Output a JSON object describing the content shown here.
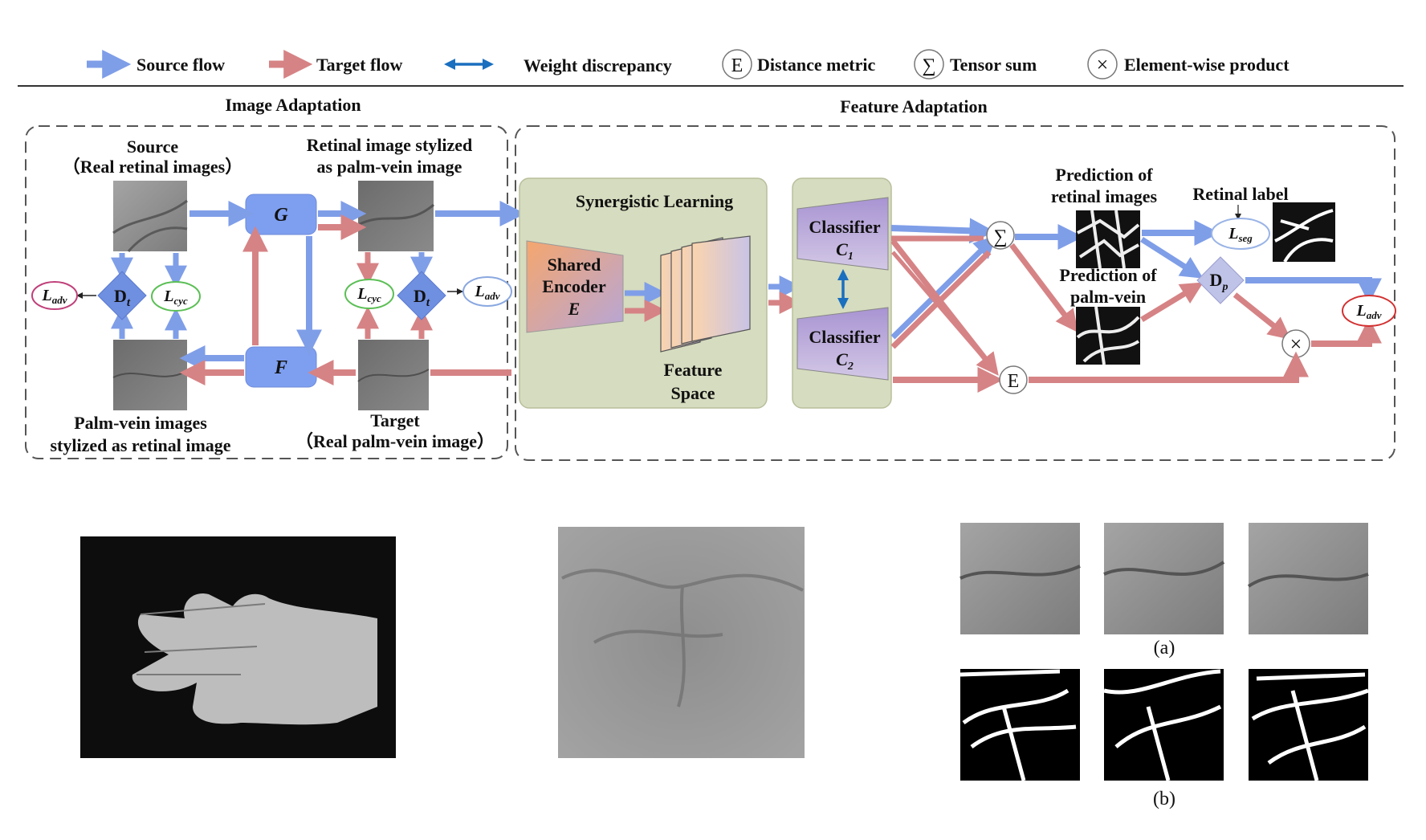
{
  "legend": {
    "source_flow": "Source flow",
    "target_flow": "Target flow",
    "weight_discrepancy": "Weight discrepancy",
    "distance_metric_symbol": "E",
    "distance_metric": "Distance metric",
    "tensor_sum_symbol": "∑",
    "tensor_sum": "Tensor sum",
    "element_product_symbol": "×",
    "element_product": "Element-wise product"
  },
  "sections": {
    "image_adaptation": "Image Adaptation",
    "feature_adaptation": "Feature Adaptation"
  },
  "image_adaptation": {
    "source_line1": "Source",
    "source_line2": "（Real retinal images）",
    "stylized_line1": "Retinal image stylized",
    "stylized_line2": "as palm-vein image",
    "palm_stylized_line1": "Palm-vein images",
    "palm_stylized_line2": "stylized as retinal image",
    "target_line1": "Target",
    "target_line2": "（Real palm-vein image）",
    "generator_g": "G",
    "generator_f": "F",
    "discriminator_main": "D",
    "discriminator_sub": "t",
    "loss_main": "L",
    "loss_adv_sub": "adv",
    "loss_cyc_sub": "cyc"
  },
  "feature_adaptation": {
    "synergistic_learning": "Synergistic Learning",
    "encoder_line1": "Shared",
    "encoder_line2": "Encoder",
    "encoder_line3": "E",
    "feature_space_line1": "Feature",
    "feature_space_line2": "Space",
    "classifier": "Classifier",
    "classifier1_main": "C",
    "classifier1_sub": "1",
    "classifier2_main": "C",
    "classifier2_sub": "2",
    "pred_retinal_line1": "Prediction of",
    "pred_retinal_line2": "retinal images",
    "pred_palm_line1": "Prediction of",
    "pred_palm_line2": "palm-vein",
    "retinal_label": "Retinal label",
    "loss_seg_sub": "seg",
    "dp_main": "D",
    "dp_sub": "p"
  },
  "panels": {
    "caption_a": "(a)",
    "caption_b": "(b)"
  },
  "colors": {
    "source_flow": "#7f9ee8",
    "target_flow": "#d68385",
    "weight_arrow": "#1a6fbf",
    "diamond": "#6f8fe0",
    "generator": "#7e9ff0",
    "synergy_bg": "#d6dcbf",
    "classifier": "#b7a6d6"
  }
}
